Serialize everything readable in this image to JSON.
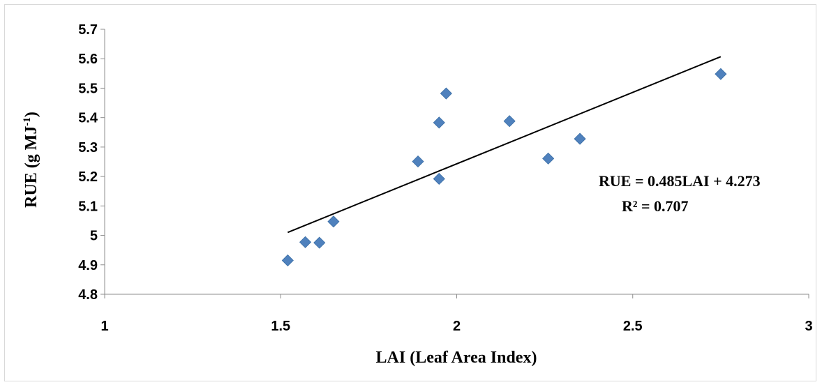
{
  "chart_data": {
    "type": "scatter",
    "xlabel": "LAI (Leaf Area Index)",
    "ylabel_main": "RUE (g MJ",
    "ylabel_sup": "-1",
    "ylabel_close": ")",
    "xlim": [
      1,
      3
    ],
    "ylim": [
      4.8,
      5.7
    ],
    "x_ticks": [
      "1",
      "1.5",
      "2",
      "2.5",
      "3"
    ],
    "y_ticks": [
      "4.8",
      "4.9",
      "5",
      "5.1",
      "5.2",
      "5.3",
      "5.4",
      "5.5",
      "5.6",
      "5.7"
    ],
    "marker_color": "#4f81bd",
    "trendline_color": "#000000",
    "points": [
      {
        "x": 1.52,
        "y": 4.915
      },
      {
        "x": 1.57,
        "y": 4.977
      },
      {
        "x": 1.61,
        "y": 4.975
      },
      {
        "x": 1.65,
        "y": 5.047
      },
      {
        "x": 1.89,
        "y": 5.251
      },
      {
        "x": 1.95,
        "y": 5.383
      },
      {
        "x": 1.95,
        "y": 5.192
      },
      {
        "x": 1.97,
        "y": 5.482
      },
      {
        "x": 2.15,
        "y": 5.388
      },
      {
        "x": 2.26,
        "y": 5.261
      },
      {
        "x": 2.35,
        "y": 5.328
      },
      {
        "x": 2.75,
        "y": 5.548
      }
    ],
    "trendline": {
      "x": [
        1.52,
        2.75
      ],
      "y": [
        5.01,
        5.607
      ]
    },
    "equation": "RUE = 0.485LAI + 4.273",
    "r_squared": "R² = 0.707"
  }
}
